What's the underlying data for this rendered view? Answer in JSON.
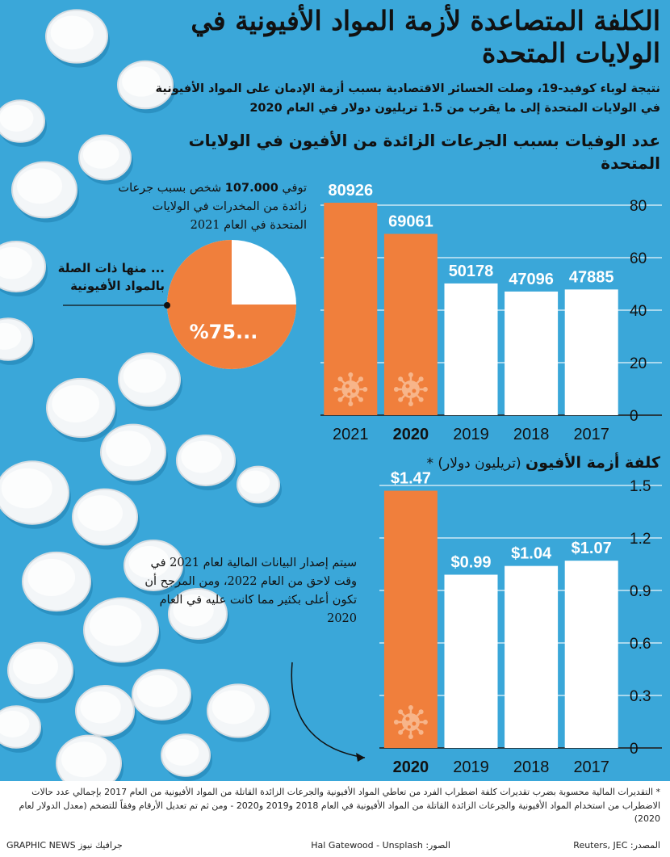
{
  "title": "الكلفة المتصاعدة لأزمة المواد الأفيونية في الولايات المتحدة",
  "subtitle": "نتيجة لوباء كوفيد-19، وصلت الخسائر الاقتصادية بسبب أزمة الإدمان على المواد الأفيونية في الولايات المتحدة إلى ما يقرب من 1.5 تريليون دولار في العام 2020",
  "section1": {
    "heading": "عدد الوفيات بسبب الجرعات الزائدة من الأفيون في الولايات المتحدة",
    "note_prefix": "توفي",
    "note_number": "107.000",
    "note_suffix": "شخص بسبب جرعات زائدة من المخدرات في الولايات المتحدة في العام 2021",
    "related_label": "... منها ذات الصلة بالمواد الأفيونية",
    "pie_label": "%75...",
    "pie_share": 0.75
  },
  "section2": {
    "heading_bold": "كلفة أزمة الأفيون",
    "heading_unit": "(تريليون دولار) *",
    "note": "سيتم إصدار البيانات المالية لعام 2021 في وقت لاحق من العام 2022، ومن المرجح أن تكون أعلى بكثير مما كانت عليه في العام 2020"
  },
  "colors": {
    "orange": "#f07f3c",
    "white": "#ffffff",
    "background": "#3aa7d9",
    "dark": "#111111"
  },
  "icons": {
    "covid_marker": "virus-icon",
    "callout": "arrow-icon"
  },
  "chart_data": [
    {
      "type": "bar",
      "categories": [
        "2017",
        "2018",
        "2019",
        "2020",
        "2021"
      ],
      "values": [
        47885,
        47096,
        50178,
        69061,
        80926
      ],
      "value_labels": [
        "47885",
        "47096",
        "50178",
        "69061",
        "80926"
      ],
      "highlight": [
        "2020",
        "2021"
      ],
      "bold_category": "2020",
      "covid_marker": [
        "2020",
        "2021"
      ],
      "ylim": [
        0,
        80000
      ],
      "yticks": [
        0,
        20000,
        40000,
        60000,
        80000
      ],
      "ytick_labels": [
        "0",
        "20",
        "40",
        "60",
        "80"
      ],
      "axis_side": "right"
    },
    {
      "type": "bar",
      "categories": [
        "2017",
        "2018",
        "2019",
        "2020"
      ],
      "values": [
        1.07,
        1.04,
        0.99,
        1.47
      ],
      "value_labels": [
        "$1.07",
        "$1.04",
        "$0.99",
        "$1.47"
      ],
      "highlight": [
        "2020"
      ],
      "bold_category": "2020",
      "covid_marker": [
        "2020"
      ],
      "ylim": [
        0,
        1.5
      ],
      "yticks": [
        0,
        0.3,
        0.6,
        0.9,
        1.2,
        1.5
      ],
      "ytick_labels": [
        "0",
        "0.3",
        "0.6",
        "0.9",
        "1.2",
        "1.5"
      ],
      "axis_side": "right"
    }
  ],
  "footer": {
    "note": "* التقديرات المالية محسوبة بضرب تقديرات كلفة اضطراب الفرد من تعاطي المواد الأفيونية والجرعات الزائدة القاتلة من المواد الأفيونية من العام 2017 بإجمالي عدد حالات الاضطراب من استخدام المواد الأفيونية والجرعات الزائدة القاتلة من المواد الأفيونية في العام 2018 و2019 و2020 - ومن ثم تم تعديل الأرقام وفقاً للتضخم (معدل الدولار لعام 2020)",
    "source": "المصدر: Reuters, JEC",
    "photo": "الصور: Hal Gatewood - Unsplash",
    "brand": "GRAPHIC NEWS جرافيك نيوز"
  }
}
